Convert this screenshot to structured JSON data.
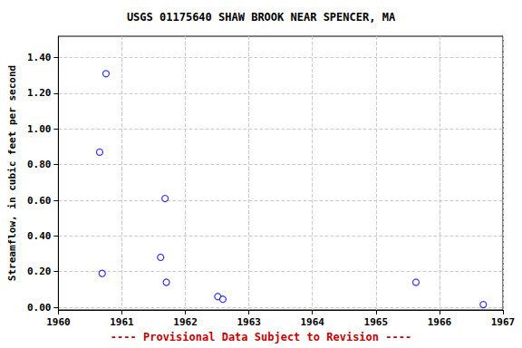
{
  "chart_data": {
    "type": "scatter",
    "title": "USGS 01175640 SHAW BROOK NEAR SPENCER, MA",
    "y_label": "Streamflow, in cubic feet per second",
    "annotation": "---- Provisional Data Subject to Revision ----",
    "x": [
      1960.65,
      1960.69,
      1960.75,
      1961.61,
      1961.68,
      1961.7,
      1962.51,
      1962.59,
      1965.63,
      1966.69
    ],
    "values": [
      0.87,
      0.19,
      1.31,
      0.28,
      0.61,
      0.14,
      0.06,
      0.045,
      0.14,
      0.015
    ],
    "color": "#0000ff",
    "marker": "circle_open",
    "xlim": [
      1960,
      1967
    ],
    "xticks": [
      1960,
      1961,
      1962,
      1963,
      1964,
      1965,
      1966,
      1967
    ],
    "ylim": [
      -0.015,
      1.52
    ],
    "yticks": [
      {
        "value": 0,
        "label": "0.00"
      },
      {
        "value": 0.2,
        "label": "0.20"
      },
      {
        "value": 0.4,
        "label": "0.40"
      },
      {
        "value": 0.6,
        "label": "0.60"
      },
      {
        "value": 0.8,
        "label": "0.80"
      },
      {
        "value": 1.0,
        "label": "1.00"
      },
      {
        "value": 1.2,
        "label": "1.20"
      },
      {
        "value": 1.4,
        "label": "1.40"
      }
    ],
    "grid": true
  }
}
